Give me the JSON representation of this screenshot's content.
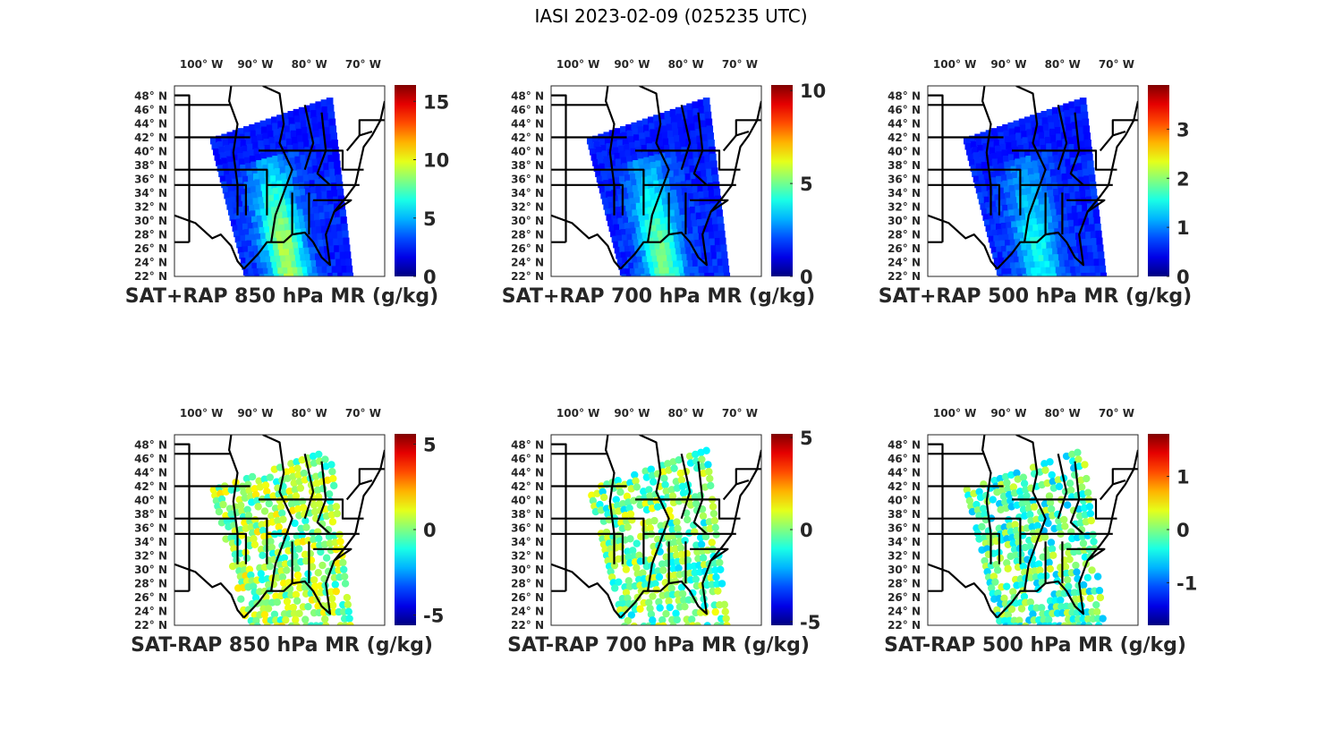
{
  "figure": {
    "title": "IASI 2023-02-09 (025235 UTC)"
  },
  "chart_data": [
    {
      "type": "heatmap",
      "title": "SAT+RAP 850 hPa MR (g/kg)",
      "xticks": [
        "100° W",
        "90° W",
        "80° W",
        "70° W"
      ],
      "yticks": [
        "48° N",
        "46° N",
        "44° N",
        "42° N",
        "40° N",
        "38° N",
        "36° N",
        "34° N",
        "32° N",
        "30° N",
        "28° N",
        "26° N",
        "24° N",
        "22° N"
      ],
      "xlim": [
        -105,
        -66
      ],
      "ylim": [
        22,
        49.5
      ],
      "colorbar": {
        "ticks": [
          "0",
          "5",
          "10",
          "15"
        ],
        "tick_values": [
          0,
          5,
          10,
          15
        ],
        "clim": [
          0,
          16.4
        ],
        "colormap": "jet"
      },
      "mean_fraction": 0.42
    },
    {
      "type": "heatmap",
      "title": "SAT+RAP 700 hPa MR (g/kg)",
      "xticks": [
        "100° W",
        "90° W",
        "80° W",
        "70° W"
      ],
      "yticks": [
        "48° N",
        "46° N",
        "44° N",
        "42° N",
        "40° N",
        "38° N",
        "36° N",
        "34° N",
        "32° N",
        "30° N",
        "28° N",
        "26° N",
        "24° N",
        "22° N"
      ],
      "xlim": [
        -105,
        -66
      ],
      "ylim": [
        22,
        49.5
      ],
      "colorbar": {
        "ticks": [
          "0",
          "5",
          "10"
        ],
        "tick_values": [
          0,
          5,
          10
        ],
        "clim": [
          0,
          10.3
        ],
        "colormap": "jet"
      },
      "mean_fraction": 0.35
    },
    {
      "type": "heatmap",
      "title": "SAT+RAP 500 hPa MR (g/kg)",
      "xticks": [
        "100° W",
        "90° W",
        "80° W",
        "70° W"
      ],
      "yticks": [
        "48° N",
        "46° N",
        "44° N",
        "42° N",
        "40° N",
        "38° N",
        "36° N",
        "34° N",
        "32° N",
        "30° N",
        "28° N",
        "26° N",
        "24° N",
        "22° N"
      ],
      "xlim": [
        -105,
        -66
      ],
      "ylim": [
        22,
        49.5
      ],
      "colorbar": {
        "ticks": [
          "0",
          "1",
          "2",
          "3"
        ],
        "tick_values": [
          0,
          1,
          2,
          3
        ],
        "clim": [
          0,
          3.9
        ],
        "colormap": "jet"
      },
      "mean_fraction": 0.25
    },
    {
      "type": "heatmap",
      "title": "SAT-RAP 850 hPa MR (g/kg)",
      "xticks": [
        "100° W",
        "90° W",
        "80° W",
        "70° W"
      ],
      "yticks": [
        "48° N",
        "46° N",
        "44° N",
        "42° N",
        "40° N",
        "38° N",
        "36° N",
        "34° N",
        "32° N",
        "30° N",
        "28° N",
        "26° N",
        "24° N",
        "22° N"
      ],
      "xlim": [
        -105,
        -66
      ],
      "ylim": [
        22,
        49.5
      ],
      "colorbar": {
        "ticks": [
          "5",
          "0",
          "-5"
        ],
        "tick_values": [
          5,
          0,
          -5
        ],
        "clim": [
          -5.6,
          5.6
        ],
        "colormap": "jet"
      },
      "mean_fraction": 0.52
    },
    {
      "type": "heatmap",
      "title": "SAT-RAP 700 hPa MR (g/kg)",
      "xticks": [
        "100° W",
        "90° W",
        "80° W",
        "70° W"
      ],
      "yticks": [
        "48° N",
        "46° N",
        "44° N",
        "42° N",
        "40° N",
        "38° N",
        "36° N",
        "34° N",
        "32° N",
        "30° N",
        "28° N",
        "26° N",
        "24° N",
        "22° N"
      ],
      "xlim": [
        -105,
        -66
      ],
      "ylim": [
        22,
        49.5
      ],
      "colorbar": {
        "ticks": [
          "5",
          "0",
          "-5"
        ],
        "tick_values": [
          5,
          0,
          -5
        ],
        "clim": [
          -5.2,
          5.2
        ],
        "colormap": "jet"
      },
      "mean_fraction": 0.48
    },
    {
      "type": "heatmap",
      "title": "SAT-RAP 500 hPa MR (g/kg)",
      "xticks": [
        "100° W",
        "90° W",
        "80° W",
        "70° W"
      ],
      "yticks": [
        "48° N",
        "46° N",
        "44° N",
        "42° N",
        "40° N",
        "38° N",
        "36° N",
        "34° N",
        "32° N",
        "30° N",
        "28° N",
        "26° N",
        "24° N",
        "22° N"
      ],
      "xlim": [
        -105,
        -66
      ],
      "ylim": [
        22,
        49.5
      ],
      "colorbar": {
        "ticks": [
          "1",
          "0",
          "-1"
        ],
        "tick_values": [
          1,
          0,
          -1
        ],
        "clim": [
          -1.8,
          1.8
        ],
        "colormap": "jet"
      },
      "mean_fraction": 0.45
    }
  ]
}
